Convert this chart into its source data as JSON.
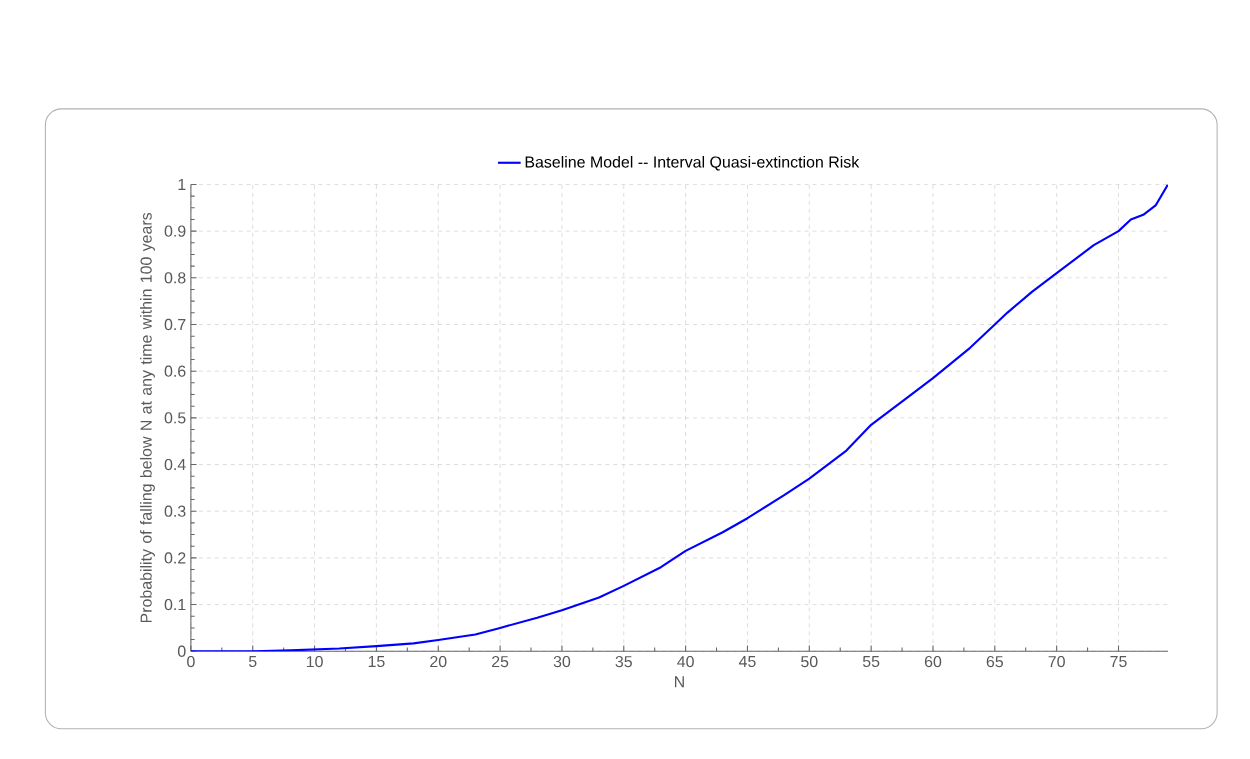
{
  "chart_data": {
    "type": "line",
    "xlabel": "N",
    "ylabel": "Probability of falling below N at any time within 100 years",
    "x": [
      0,
      5,
      8,
      10,
      12,
      15,
      18,
      20,
      23,
      25,
      28,
      30,
      33,
      35,
      38,
      40,
      43,
      45,
      48,
      50,
      53,
      55,
      58,
      60,
      63,
      65,
      66,
      68,
      70,
      73,
      75,
      76,
      77,
      78,
      79
    ],
    "series": [
      {
        "name": "Baseline Model -- Interval Quasi-extinction Risk",
        "color": "#0000ff",
        "values": [
          0,
          0,
          0.002,
          0.004,
          0.006,
          0.011,
          0.017,
          0.024,
          0.036,
          0.05,
          0.072,
          0.088,
          0.115,
          0.14,
          0.18,
          0.215,
          0.255,
          0.285,
          0.335,
          0.37,
          0.43,
          0.485,
          0.545,
          0.585,
          0.65,
          0.7,
          0.725,
          0.77,
          0.81,
          0.87,
          0.9,
          0.925,
          0.935,
          0.955,
          1.0
        ]
      }
    ],
    "xlim": [
      0,
      79
    ],
    "ylim": [
      0,
      1
    ],
    "xticks": [
      0,
      5,
      10,
      15,
      20,
      25,
      30,
      35,
      40,
      45,
      50,
      55,
      60,
      65,
      70,
      75
    ],
    "yticks": [
      0,
      0.1,
      0.2,
      0.3,
      0.4,
      0.5,
      0.6,
      0.7,
      0.8,
      0.9,
      1
    ],
    "grid": true,
    "legend": "top",
    "marker": "none",
    "line_style": "solid"
  }
}
